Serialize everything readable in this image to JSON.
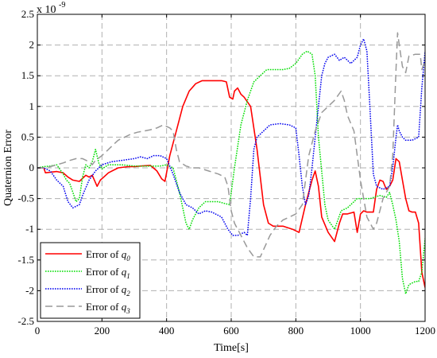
{
  "chart_data": {
    "type": "line",
    "xlabel": "Time[s]",
    "ylabel": "Quaternion Error",
    "scale_label": "x 10",
    "scale_exponent": "-9",
    "xlim": [
      0,
      1200
    ],
    "ylim": [
      -2.5,
      2.5
    ],
    "x_ticks": [
      0,
      200,
      400,
      600,
      800,
      1000,
      1200
    ],
    "y_ticks": [
      -2.5,
      -2,
      -1.5,
      -1,
      -0.5,
      0,
      0.5,
      1,
      1.5,
      2,
      2.5
    ],
    "x_tick_labels": [
      "0",
      "200",
      "400",
      "600",
      "800",
      "1000",
      "1200"
    ],
    "y_tick_labels": [
      "-2.5",
      "-2",
      "-1.5",
      "-1",
      "-0.5",
      "0",
      "0.5",
      "1",
      "1.5",
      "2",
      "2.5"
    ],
    "grid": true,
    "legend_position": "bottom-left",
    "legend_prefix": "Error of",
    "series": [
      {
        "name": "Error of q0",
        "symbol": "q",
        "subscript": "0",
        "color": "#ff0000",
        "dash": "solid",
        "points": [
          [
            0,
            0
          ],
          [
            20,
            0
          ],
          [
            25,
            -0.08
          ],
          [
            60,
            -0.06
          ],
          [
            80,
            -0.08
          ],
          [
            95,
            -0.15
          ],
          [
            110,
            -0.2
          ],
          [
            130,
            -0.22
          ],
          [
            150,
            -0.12
          ],
          [
            160,
            -0.15
          ],
          [
            170,
            -0.12
          ],
          [
            185,
            -0.3
          ],
          [
            195,
            -0.2
          ],
          [
            220,
            -0.08
          ],
          [
            250,
            0
          ],
          [
            280,
            0.02
          ],
          [
            300,
            0.02
          ],
          [
            320,
            0.03
          ],
          [
            350,
            0.04
          ],
          [
            370,
            -0.05
          ],
          [
            385,
            -0.18
          ],
          [
            395,
            -0.22
          ],
          [
            410,
            0.2
          ],
          [
            430,
            0.6
          ],
          [
            450,
            1.0
          ],
          [
            470,
            1.25
          ],
          [
            490,
            1.37
          ],
          [
            510,
            1.42
          ],
          [
            540,
            1.42
          ],
          [
            570,
            1.42
          ],
          [
            585,
            1.4
          ],
          [
            595,
            1.15
          ],
          [
            605,
            1.12
          ],
          [
            610,
            1.25
          ],
          [
            620,
            1.3
          ],
          [
            630,
            1.2
          ],
          [
            640,
            1.15
          ],
          [
            660,
            1.0
          ],
          [
            680,
            0.3
          ],
          [
            700,
            -0.6
          ],
          [
            715,
            -0.9
          ],
          [
            730,
            -0.95
          ],
          [
            760,
            -0.95
          ],
          [
            790,
            -1.0
          ],
          [
            810,
            -1.05
          ],
          [
            830,
            -0.6
          ],
          [
            850,
            -0.2
          ],
          [
            860,
            -0.05
          ],
          [
            870,
            -0.3
          ],
          [
            880,
            -0.8
          ],
          [
            900,
            -1.05
          ],
          [
            920,
            -1.2
          ],
          [
            935,
            -0.9
          ],
          [
            945,
            -0.75
          ],
          [
            960,
            -0.75
          ],
          [
            980,
            -0.72
          ],
          [
            990,
            -1.05
          ],
          [
            1000,
            -0.75
          ],
          [
            1010,
            -0.7
          ],
          [
            1020,
            -0.72
          ],
          [
            1040,
            -0.72
          ],
          [
            1050,
            -0.35
          ],
          [
            1060,
            -0.2
          ],
          [
            1070,
            -0.22
          ],
          [
            1080,
            -0.35
          ],
          [
            1090,
            -0.3
          ],
          [
            1100,
            -0.2
          ],
          [
            1110,
            0.15
          ],
          [
            1120,
            0.1
          ],
          [
            1130,
            -0.2
          ],
          [
            1140,
            -0.5
          ],
          [
            1150,
            -0.7
          ],
          [
            1160,
            -0.72
          ],
          [
            1170,
            -0.72
          ],
          [
            1180,
            -0.9
          ],
          [
            1190,
            -1.7
          ],
          [
            1200,
            -1.95
          ]
        ]
      },
      {
        "name": "Error of q1",
        "symbol": "q",
        "subscript": "1",
        "color": "#00dd00",
        "dash": "dotted",
        "points": [
          [
            0,
            0
          ],
          [
            20,
            0.02
          ],
          [
            40,
            0.03
          ],
          [
            60,
            0.05
          ],
          [
            80,
            -0.1
          ],
          [
            90,
            -0.2
          ],
          [
            100,
            -0.25
          ],
          [
            120,
            -0.55
          ],
          [
            130,
            -0.5
          ],
          [
            140,
            -0.15
          ],
          [
            150,
            0.05
          ],
          [
            160,
            0.0
          ],
          [
            170,
            0.1
          ],
          [
            180,
            0.3
          ],
          [
            190,
            0.08
          ],
          [
            200,
            -0.02
          ],
          [
            220,
            0.05
          ],
          [
            240,
            0.05
          ],
          [
            260,
            0.05
          ],
          [
            300,
            0.03
          ],
          [
            340,
            0.03
          ],
          [
            380,
            0.03
          ],
          [
            400,
            0.05
          ],
          [
            420,
            0.0
          ],
          [
            440,
            -0.4
          ],
          [
            460,
            -0.9
          ],
          [
            470,
            -1.0
          ],
          [
            480,
            -0.85
          ],
          [
            500,
            -0.65
          ],
          [
            520,
            -0.55
          ],
          [
            560,
            -0.55
          ],
          [
            580,
            -0.58
          ],
          [
            595,
            -0.6
          ],
          [
            610,
            0.0
          ],
          [
            630,
            0.7
          ],
          [
            650,
            1.1
          ],
          [
            670,
            1.4
          ],
          [
            690,
            1.5
          ],
          [
            710,
            1.6
          ],
          [
            730,
            1.6
          ],
          [
            760,
            1.6
          ],
          [
            780,
            1.62
          ],
          [
            800,
            1.7
          ],
          [
            820,
            1.85
          ],
          [
            835,
            1.9
          ],
          [
            850,
            1.85
          ],
          [
            860,
            1.5
          ],
          [
            870,
            0.5
          ],
          [
            890,
            -0.6
          ],
          [
            900,
            -0.85
          ],
          [
            920,
            -1.0
          ],
          [
            930,
            -0.85
          ],
          [
            940,
            -0.7
          ],
          [
            960,
            -0.65
          ],
          [
            990,
            -0.5
          ],
          [
            1010,
            -0.5
          ],
          [
            1030,
            -0.5
          ],
          [
            1060,
            -0.45
          ],
          [
            1080,
            -0.48
          ],
          [
            1090,
            -0.4
          ],
          [
            1100,
            -0.6
          ],
          [
            1110,
            -0.85
          ],
          [
            1120,
            -1.2
          ],
          [
            1130,
            -1.8
          ],
          [
            1140,
            -2.05
          ],
          [
            1150,
            -1.9
          ],
          [
            1170,
            -1.85
          ],
          [
            1180,
            -1.85
          ],
          [
            1190,
            -1.7
          ],
          [
            1200,
            -1.15
          ]
        ]
      },
      {
        "name": "Error of q2",
        "symbol": "q",
        "subscript": "2",
        "color": "#0000ee",
        "dash": "dotted",
        "points": [
          [
            0,
            0
          ],
          [
            20,
            0
          ],
          [
            40,
            -0.05
          ],
          [
            60,
            -0.2
          ],
          [
            80,
            -0.3
          ],
          [
            95,
            -0.55
          ],
          [
            110,
            -0.65
          ],
          [
            130,
            -0.6
          ],
          [
            140,
            -0.45
          ],
          [
            160,
            -0.2
          ],
          [
            180,
            -0.05
          ],
          [
            200,
            0.05
          ],
          [
            230,
            0.1
          ],
          [
            260,
            0.12
          ],
          [
            300,
            0.15
          ],
          [
            320,
            0.18
          ],
          [
            340,
            0.15
          ],
          [
            360,
            0.2
          ],
          [
            380,
            0.2
          ],
          [
            400,
            0.15
          ],
          [
            420,
            -0.1
          ],
          [
            440,
            -0.4
          ],
          [
            460,
            -0.6
          ],
          [
            480,
            -0.65
          ],
          [
            500,
            -0.75
          ],
          [
            520,
            -0.7
          ],
          [
            540,
            -0.72
          ],
          [
            570,
            -0.8
          ],
          [
            590,
            -1.0
          ],
          [
            605,
            -1.1
          ],
          [
            620,
            -1.1
          ],
          [
            640,
            -1.05
          ],
          [
            650,
            -1.1
          ],
          [
            660,
            -0.5
          ],
          [
            670,
            0.3
          ],
          [
            680,
            0.5
          ],
          [
            700,
            0.6
          ],
          [
            720,
            0.7
          ],
          [
            750,
            0.72
          ],
          [
            780,
            0.7
          ],
          [
            800,
            0.65
          ],
          [
            810,
            0.2
          ],
          [
            820,
            -0.3
          ],
          [
            830,
            -0.6
          ],
          [
            840,
            -0.45
          ],
          [
            850,
            0.0
          ],
          [
            860,
            0.5
          ],
          [
            870,
            1.0
          ],
          [
            880,
            1.5
          ],
          [
            890,
            1.7
          ],
          [
            900,
            1.8
          ],
          [
            920,
            1.85
          ],
          [
            935,
            1.75
          ],
          [
            950,
            1.8
          ],
          [
            970,
            1.7
          ],
          [
            990,
            1.8
          ],
          [
            1000,
            2.0
          ],
          [
            1010,
            2.1
          ],
          [
            1020,
            1.9
          ],
          [
            1030,
            0.9
          ],
          [
            1040,
            -0.1
          ],
          [
            1050,
            -0.3
          ],
          [
            1070,
            -0.35
          ],
          [
            1090,
            -0.3
          ],
          [
            1100,
            0.0
          ],
          [
            1110,
            0.5
          ],
          [
            1115,
            0.7
          ],
          [
            1120,
            0.6
          ],
          [
            1130,
            0.5
          ],
          [
            1140,
            0.45
          ],
          [
            1160,
            0.45
          ],
          [
            1180,
            0.5
          ],
          [
            1190,
            1.3
          ],
          [
            1200,
            1.9
          ]
        ]
      },
      {
        "name": "Error of q3",
        "symbol": "q",
        "subscript": "3",
        "color": "#999999",
        "dash": "dashed",
        "points": [
          [
            0,
            0
          ],
          [
            20,
            0
          ],
          [
            40,
            0.02
          ],
          [
            60,
            0.05
          ],
          [
            80,
            0.08
          ],
          [
            100,
            0.12
          ],
          [
            120,
            0.15
          ],
          [
            140,
            0.15
          ],
          [
            160,
            0.1
          ],
          [
            170,
            0.05
          ],
          [
            180,
            0.12
          ],
          [
            200,
            0.2
          ],
          [
            220,
            0.3
          ],
          [
            240,
            0.4
          ],
          [
            250,
            0.45
          ],
          [
            270,
            0.5
          ],
          [
            290,
            0.55
          ],
          [
            310,
            0.58
          ],
          [
            330,
            0.6
          ],
          [
            350,
            0.62
          ],
          [
            370,
            0.65
          ],
          [
            390,
            0.7
          ],
          [
            410,
            0.65
          ],
          [
            420,
            0.6
          ],
          [
            430,
            0.3
          ],
          [
            440,
            0.1
          ],
          [
            460,
            0.03
          ],
          [
            480,
            0.0
          ],
          [
            500,
            0.0
          ],
          [
            530,
            -0.05
          ],
          [
            560,
            -0.1
          ],
          [
            580,
            -0.15
          ],
          [
            590,
            -0.3
          ],
          [
            600,
            -0.7
          ],
          [
            610,
            -0.9
          ],
          [
            630,
            -1.1
          ],
          [
            650,
            -1.3
          ],
          [
            670,
            -1.45
          ],
          [
            690,
            -1.45
          ],
          [
            720,
            -1.1
          ],
          [
            740,
            -0.95
          ],
          [
            760,
            -0.85
          ],
          [
            780,
            -0.8
          ],
          [
            800,
            -0.75
          ],
          [
            820,
            -0.6
          ],
          [
            840,
            0.2
          ],
          [
            860,
            0.6
          ],
          [
            880,
            0.9
          ],
          [
            900,
            1.0
          ],
          [
            920,
            1.1
          ],
          [
            940,
            1.25
          ],
          [
            950,
            1.1
          ],
          [
            960,
            0.85
          ],
          [
            980,
            0.6
          ],
          [
            990,
            0.2
          ],
          [
            1000,
            -0.2
          ],
          [
            1010,
            -0.5
          ],
          [
            1020,
            -0.8
          ],
          [
            1030,
            -0.9
          ],
          [
            1040,
            -1.0
          ],
          [
            1050,
            -0.9
          ],
          [
            1070,
            -0.5
          ],
          [
            1090,
            -0.3
          ],
          [
            1100,
            0.2
          ],
          [
            1110,
            1.6
          ],
          [
            1115,
            2.2
          ],
          [
            1120,
            2.0
          ],
          [
            1130,
            1.65
          ],
          [
            1140,
            1.55
          ],
          [
            1150,
            1.82
          ],
          [
            1170,
            1.85
          ],
          [
            1185,
            1.85
          ],
          [
            1190,
            1.6
          ],
          [
            1200,
            1.75
          ]
        ]
      }
    ]
  }
}
